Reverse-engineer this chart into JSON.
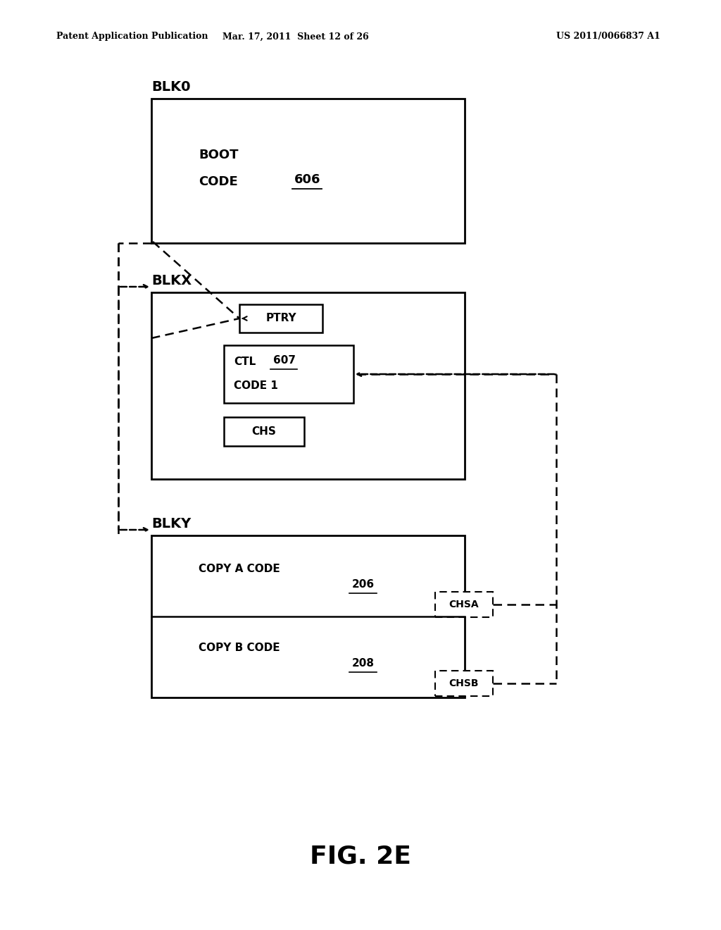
{
  "bg_color": "#ffffff",
  "header_left": "Patent Application Publication",
  "header_mid": "Mar. 17, 2011  Sheet 12 of 26",
  "header_right": "US 2011/0066837 A1",
  "figure_label": "FIG. 2E",
  "blk0_label": "BLK0",
  "boot_line1": "BOOT",
  "boot_line2": "CODE",
  "ref_606": "606",
  "blkx_label": "BLKX",
  "ptry_text": "PTRY",
  "ctl_line1": "CTL",
  "ref_607": "607",
  "ctl_line2": "CODE 1",
  "chs_text": "CHS",
  "blky_label": "BLKY",
  "copy_a_text": "COPY A CODE",
  "ref_206": "206",
  "copy_b_text": "COPY B CODE",
  "ref_208": "208",
  "chsa_text": "CHSA",
  "chsb_text": "CHSB"
}
